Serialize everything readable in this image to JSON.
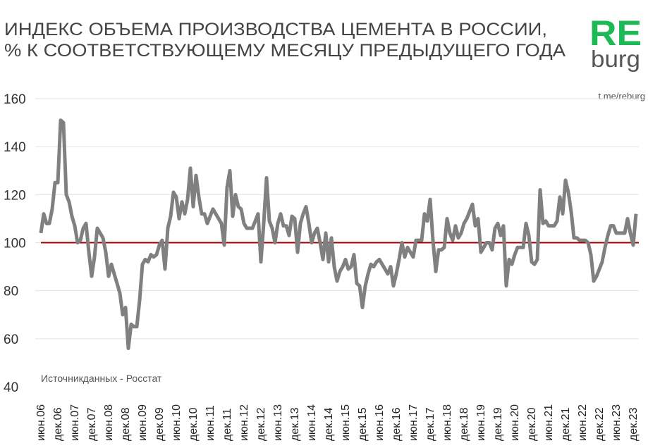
{
  "header": {
    "title_line1": "ИНДЕКС ОБЪЕМА ПРОИЗВОДСТВА ЦЕМЕНТА В РОССИИ,",
    "title_line2": "% К СООТВЕТСТВУЮЩЕМУ  МЕСЯЦУ ПРЕДЫДУЩЕГО ГОДА",
    "logo_top": "RE",
    "logo_bottom": "burg",
    "link": "t.me/reburg"
  },
  "colors": {
    "series": "#808080",
    "reference_line": "#a00000",
    "logo_green": "#1db954",
    "logo_gray": "#555555",
    "grid": "#e3e3e3"
  },
  "chart_data": {
    "type": "line",
    "title": "ИНДЕКС ОБЪЕМА ПРОИЗВОДСТВА ЦЕМЕНТА В РОССИИ, % К СООТВЕТСТВУЮЩЕМУ  МЕСЯЦУ ПРЕДЫДУЩЕГО ГОДА",
    "source": "Источникданных  - Росстат",
    "ylim": [
      40,
      160
    ],
    "yticks": [
      40,
      60,
      80,
      100,
      120,
      140,
      160
    ],
    "grid": true,
    "reference_line": 100,
    "x_start": "2006-06",
    "x_end": "2024-01",
    "x_frequency": "monthly",
    "xtick_labels": [
      "июн.06",
      "дек.06",
      "июн.07",
      "дек.07",
      "июн.08",
      "дек.08",
      "июн.09",
      "дек.09",
      "июн.10",
      "дек.10",
      "июн.11",
      "дек.11",
      "июн.12",
      "дек.12",
      "июн.13",
      "дек.13",
      "июн.14",
      "дек.14",
      "июн.15",
      "дек.15",
      "июн.16",
      "дек.16",
      "июн.17",
      "дек.17",
      "июн.18",
      "дек.18",
      "июн.19",
      "дек.19",
      "июн.20",
      "дек.20",
      "июн.21",
      "дек.21",
      "июн.22",
      "дек.22",
      "июн.23",
      "дек.23"
    ],
    "values": [
      104,
      112,
      108,
      108,
      114,
      125,
      125,
      151,
      150,
      120,
      117,
      111,
      107,
      100,
      101,
      106,
      108,
      96,
      86,
      94,
      106,
      104,
      102,
      96,
      86,
      91,
      87,
      83,
      79,
      70,
      73,
      56,
      66,
      65,
      65,
      76,
      91,
      93,
      92,
      95,
      94,
      95,
      99,
      101,
      89,
      106,
      111,
      121,
      119,
      110,
      117,
      112,
      118,
      131,
      115,
      128,
      119,
      112,
      112,
      108,
      111,
      114,
      112,
      110,
      108,
      99,
      123,
      130,
      111,
      120,
      115,
      114,
      108,
      106,
      106,
      106,
      109,
      112,
      92,
      108,
      127,
      109,
      106,
      100,
      108,
      112,
      107,
      107,
      103,
      111,
      110,
      96,
      108,
      112,
      115,
      108,
      100,
      104,
      106,
      100,
      93,
      104,
      92,
      102,
      90,
      84,
      88,
      90,
      93,
      89,
      90,
      95,
      83,
      82,
      73,
      82,
      87,
      91,
      90,
      92,
      93,
      91,
      89,
      87,
      90,
      82,
      87,
      93,
      100,
      94,
      98,
      96,
      94,
      101,
      101,
      101,
      112,
      109,
      118,
      101,
      88,
      97,
      97,
      98,
      110,
      104,
      101,
      107,
      102,
      104,
      108,
      110,
      113,
      116,
      107,
      110,
      96,
      98,
      100,
      100,
      97,
      106,
      108,
      103,
      107,
      82,
      93,
      91,
      95,
      98,
      98,
      98,
      108,
      103,
      92,
      91,
      93,
      122,
      108,
      109,
      107,
      107,
      107,
      109,
      119,
      112,
      126,
      121,
      113,
      102,
      102,
      101,
      101,
      101,
      100,
      95,
      84,
      86,
      89,
      92,
      98,
      103,
      107,
      107,
      104,
      104,
      104,
      104,
      110,
      104,
      99,
      112
    ]
  }
}
